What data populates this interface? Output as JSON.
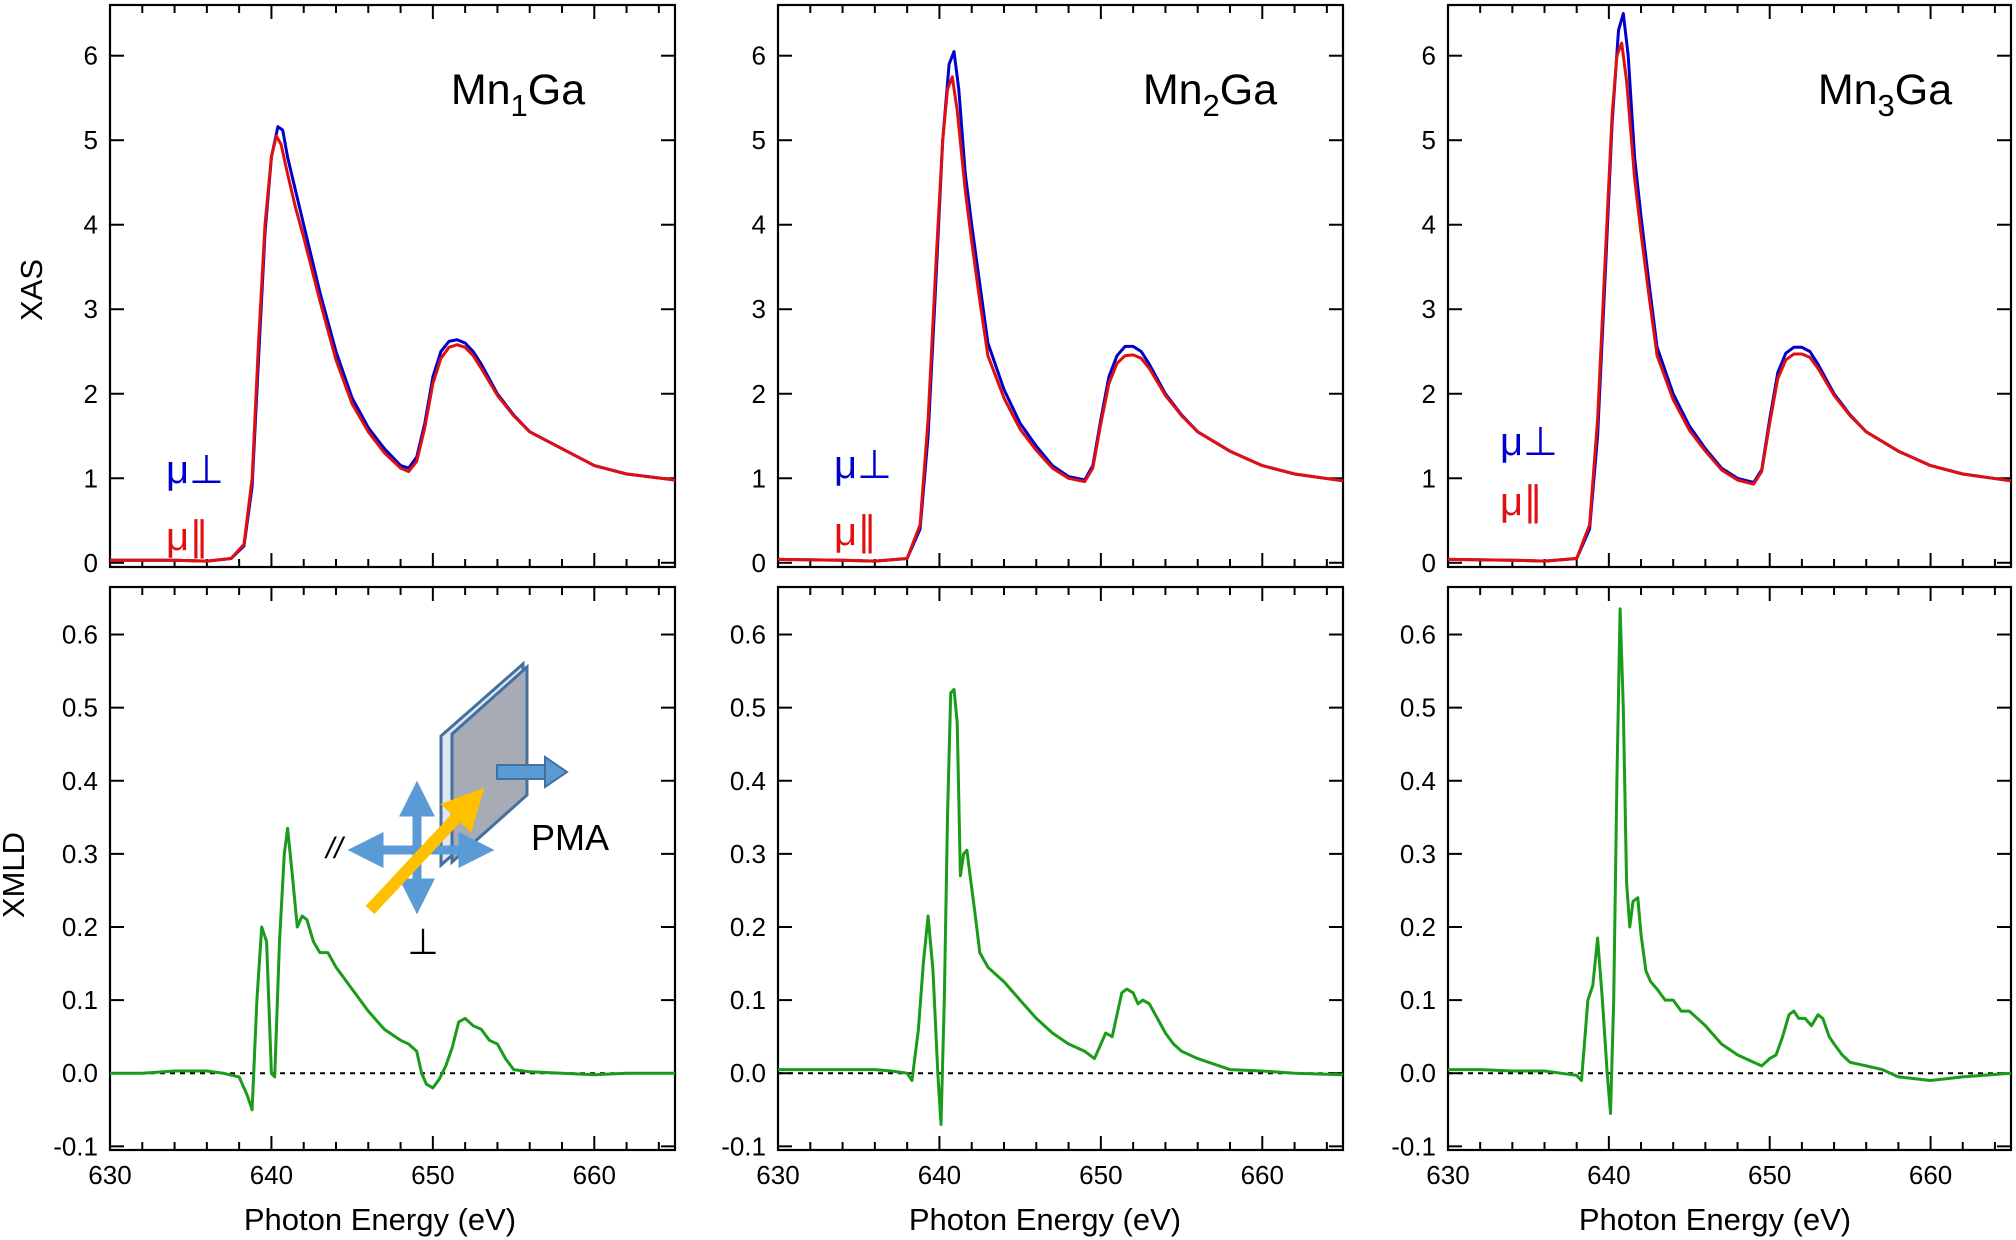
{
  "figure": {
    "x_axis_label": "Photon Energy (eV)",
    "y_label_top": "XAS",
    "y_label_bottom": "XMLD",
    "colors": {
      "mu_perp": "#0000cc",
      "mu_par": "#e01010",
      "xmld": "#1a9c1a",
      "zero_line": "#000000",
      "arrow_blue": "#5b9bd5",
      "beam_arrow": "#ffc000",
      "sample_plate": "#a6abb5",
      "sample_edge": "#41719c"
    }
  },
  "legend": {
    "perp": "μ⊥",
    "par": "μ∥"
  },
  "inset": {
    "label_pma": "PMA",
    "label_parallel": "//",
    "label_perp": "⊥",
    "icons": [
      "sample-plate-icon",
      "beam-arrow-icon",
      "polarization-arrows-icon",
      "magnetization-arrow-icon"
    ]
  },
  "chart_data": [
    {
      "type": "line",
      "panel": "XAS",
      "title": "Mn1Ga",
      "title_base": "Mn",
      "title_sub": "1",
      "title_rest": "Ga",
      "xlabel": "",
      "ylabel": "XAS",
      "xlim": [
        630,
        665
      ],
      "ylim": [
        -0.05,
        6.6
      ],
      "xticks": [
        630,
        640,
        650,
        660
      ],
      "yticks": [
        0,
        1,
        2,
        3,
        4,
        5,
        6
      ],
      "series": [
        {
          "name": "μ⊥",
          "color": "#0000cc",
          "x": [
            630,
            634,
            636,
            637.5,
            638.3,
            638.8,
            639.2,
            639.6,
            640,
            640.4,
            640.7,
            641,
            641.5,
            642,
            643,
            644,
            645,
            646,
            647,
            648,
            648.5,
            649,
            649.5,
            650,
            650.5,
            651,
            651.5,
            652,
            652.5,
            653,
            654,
            655,
            656,
            658,
            660,
            662,
            665
          ],
          "y": [
            0.03,
            0.03,
            0.02,
            0.05,
            0.2,
            0.9,
            2.4,
            3.9,
            4.8,
            5.16,
            5.12,
            4.8,
            4.4,
            4.0,
            3.2,
            2.5,
            1.95,
            1.6,
            1.35,
            1.15,
            1.12,
            1.25,
            1.65,
            2.2,
            2.5,
            2.62,
            2.64,
            2.6,
            2.5,
            2.35,
            2.0,
            1.75,
            1.55,
            1.35,
            1.15,
            1.05,
            0.98
          ]
        },
        {
          "name": "μ∥",
          "color": "#e01010",
          "x": [
            630,
            634,
            636,
            637.5,
            638.3,
            638.8,
            639.2,
            639.6,
            640,
            640.3,
            640.6,
            641,
            641.5,
            642,
            643,
            644,
            645,
            646,
            647,
            648,
            648.5,
            649,
            649.5,
            650,
            650.5,
            651,
            651.5,
            652,
            652.5,
            653,
            654,
            655,
            656,
            658,
            660,
            662,
            665
          ],
          "y": [
            0.03,
            0.03,
            0.02,
            0.05,
            0.22,
            1.0,
            2.6,
            4.0,
            4.8,
            5.05,
            4.95,
            4.6,
            4.2,
            3.85,
            3.1,
            2.4,
            1.88,
            1.55,
            1.3,
            1.12,
            1.08,
            1.2,
            1.6,
            2.12,
            2.42,
            2.55,
            2.58,
            2.55,
            2.45,
            2.3,
            1.98,
            1.74,
            1.55,
            1.35,
            1.15,
            1.05,
            0.98
          ]
        }
      ]
    },
    {
      "type": "line",
      "panel": "XAS",
      "title": "Mn2Ga",
      "title_base": "Mn",
      "title_sub": "2",
      "title_rest": "Ga",
      "xlabel": "",
      "ylabel": "",
      "xlim": [
        630,
        665
      ],
      "ylim": [
        -0.05,
        6.6
      ],
      "xticks": [
        630,
        640,
        650,
        660
      ],
      "yticks": [
        0,
        1,
        2,
        3,
        4,
        5,
        6
      ],
      "series": [
        {
          "name": "μ⊥",
          "color": "#0000cc",
          "x": [
            630,
            634,
            636,
            638,
            638.8,
            639.3,
            639.8,
            640.2,
            640.6,
            640.9,
            641.2,
            641.6,
            642,
            642.5,
            643,
            644,
            645,
            646,
            647,
            648,
            649,
            649.5,
            650,
            650.5,
            651,
            651.5,
            652,
            652.5,
            653,
            654,
            655,
            656,
            658,
            660,
            662,
            665
          ],
          "y": [
            0.04,
            0.03,
            0.02,
            0.05,
            0.4,
            1.5,
            3.4,
            5.0,
            5.9,
            6.05,
            5.6,
            4.6,
            4.0,
            3.3,
            2.6,
            2.05,
            1.65,
            1.38,
            1.15,
            1.02,
            0.98,
            1.15,
            1.7,
            2.2,
            2.45,
            2.56,
            2.56,
            2.5,
            2.35,
            2.0,
            1.75,
            1.55,
            1.32,
            1.15,
            1.05,
            0.97
          ]
        },
        {
          "name": "μ∥",
          "color": "#e01010",
          "x": [
            630,
            634,
            636,
            638,
            638.8,
            639.3,
            639.8,
            640.2,
            640.5,
            640.8,
            641.1,
            641.6,
            642,
            642.5,
            643,
            644,
            645,
            646,
            647,
            648,
            649,
            649.5,
            650,
            650.5,
            651,
            651.5,
            652,
            652.5,
            653,
            654,
            655,
            656,
            658,
            660,
            662,
            665
          ],
          "y": [
            0.04,
            0.03,
            0.02,
            0.05,
            0.45,
            1.7,
            3.6,
            5.0,
            5.6,
            5.75,
            5.35,
            4.4,
            3.8,
            3.1,
            2.45,
            1.95,
            1.58,
            1.33,
            1.12,
            1.0,
            0.96,
            1.12,
            1.65,
            2.12,
            2.36,
            2.45,
            2.46,
            2.42,
            2.3,
            1.98,
            1.74,
            1.55,
            1.32,
            1.15,
            1.05,
            0.97
          ]
        }
      ]
    },
    {
      "type": "line",
      "panel": "XAS",
      "title": "Mn3Ga",
      "title_base": "Mn",
      "title_sub": "3",
      "title_rest": "Ga",
      "xlabel": "",
      "ylabel": "",
      "xlim": [
        630,
        665
      ],
      "ylim": [
        -0.05,
        6.6
      ],
      "xticks": [
        630,
        640,
        650,
        660
      ],
      "yticks": [
        0,
        1,
        2,
        3,
        4,
        5,
        6
      ],
      "series": [
        {
          "name": "μ⊥",
          "color": "#0000cc",
          "x": [
            630,
            634,
            636,
            638,
            638.8,
            639.3,
            639.8,
            640.2,
            640.6,
            640.9,
            641.2,
            641.6,
            642,
            642.5,
            643,
            644,
            645,
            646,
            647,
            648,
            649,
            649.5,
            650,
            650.5,
            651,
            651.5,
            652,
            652.5,
            653,
            654,
            655,
            656,
            658,
            660,
            662,
            665
          ],
          "y": [
            0.04,
            0.03,
            0.02,
            0.05,
            0.4,
            1.5,
            3.5,
            5.2,
            6.3,
            6.5,
            6.0,
            4.8,
            4.1,
            3.3,
            2.55,
            2.0,
            1.62,
            1.35,
            1.12,
            1.0,
            0.95,
            1.1,
            1.7,
            2.25,
            2.48,
            2.55,
            2.55,
            2.5,
            2.35,
            2.0,
            1.75,
            1.55,
            1.32,
            1.15,
            1.05,
            0.97
          ]
        },
        {
          "name": "μ∥",
          "color": "#e01010",
          "x": [
            630,
            634,
            636,
            638,
            638.8,
            639.3,
            639.8,
            640.2,
            640.5,
            640.8,
            641.1,
            641.6,
            642,
            642.5,
            643,
            644,
            645,
            646,
            647,
            648,
            649,
            649.5,
            650,
            650.5,
            651,
            651.5,
            652,
            652.5,
            653,
            654,
            655,
            656,
            658,
            660,
            662,
            665
          ],
          "y": [
            0.04,
            0.03,
            0.02,
            0.05,
            0.45,
            1.7,
            3.7,
            5.3,
            6.0,
            6.15,
            5.7,
            4.55,
            3.9,
            3.15,
            2.45,
            1.93,
            1.57,
            1.32,
            1.1,
            0.98,
            0.93,
            1.08,
            1.65,
            2.18,
            2.4,
            2.47,
            2.47,
            2.43,
            2.3,
            1.98,
            1.74,
            1.55,
            1.32,
            1.15,
            1.05,
            0.97
          ]
        }
      ]
    },
    {
      "type": "line",
      "panel": "XMLD",
      "title": "",
      "xlabel": "Photon Energy (eV)",
      "ylabel": "XMLD",
      "xlim": [
        630,
        665
      ],
      "ylim": [
        -0.105,
        0.665
      ],
      "xticks": [
        630,
        640,
        650,
        660
      ],
      "yticks": [
        -0.1,
        0.0,
        0.1,
        0.2,
        0.3,
        0.4,
        0.5,
        0.6
      ],
      "series": [
        {
          "name": "",
          "color": "#1a9c1a",
          "x": [
            630,
            632,
            634,
            636,
            637,
            638,
            638.5,
            638.8,
            639.1,
            639.4,
            639.7,
            640,
            640.2,
            640.5,
            640.8,
            641,
            641.3,
            641.6,
            641.9,
            642.2,
            642.6,
            643,
            643.5,
            644,
            645,
            646,
            647,
            648,
            648.5,
            649,
            649.3,
            649.6,
            650,
            650.4,
            650.8,
            651.2,
            651.6,
            652,
            652.5,
            653,
            653.5,
            654,
            654.5,
            655,
            656,
            658,
            660,
            662,
            665
          ],
          "y": [
            0.0,
            0.0,
            0.003,
            0.003,
            0.0,
            -0.005,
            -0.03,
            -0.05,
            0.1,
            0.2,
            0.18,
            0.0,
            -0.005,
            0.18,
            0.3,
            0.335,
            0.27,
            0.2,
            0.215,
            0.21,
            0.18,
            0.165,
            0.165,
            0.145,
            0.115,
            0.085,
            0.06,
            0.045,
            0.04,
            0.03,
            0.0,
            -0.015,
            -0.02,
            -0.008,
            0.01,
            0.035,
            0.07,
            0.075,
            0.065,
            0.06,
            0.045,
            0.04,
            0.02,
            0.005,
            0.002,
            0.0,
            -0.002,
            0.0,
            0.0
          ]
        }
      ]
    },
    {
      "type": "line",
      "panel": "XMLD",
      "title": "",
      "xlabel": "Photon Energy (eV)",
      "ylabel": "",
      "xlim": [
        630,
        665
      ],
      "ylim": [
        -0.105,
        0.665
      ],
      "xticks": [
        630,
        640,
        650,
        660
      ],
      "yticks": [
        -0.1,
        0.0,
        0.1,
        0.2,
        0.3,
        0.4,
        0.5,
        0.6
      ],
      "series": [
        {
          "name": "",
          "color": "#1a9c1a",
          "x": [
            630,
            632,
            634,
            636,
            637,
            638,
            638.3,
            638.7,
            639,
            639.3,
            639.6,
            639.9,
            640.1,
            640.3,
            640.5,
            640.7,
            640.9,
            641.1,
            641.3,
            641.5,
            641.7,
            641.9,
            642.2,
            642.5,
            643,
            643.5,
            644,
            645,
            646,
            647,
            648,
            649,
            649.3,
            649.6,
            650,
            650.3,
            650.7,
            651,
            651.3,
            651.6,
            652,
            652.3,
            652.6,
            653,
            653.5,
            654,
            654.5,
            655,
            656,
            658,
            660,
            662,
            665
          ],
          "y": [
            0.005,
            0.005,
            0.005,
            0.005,
            0.003,
            0.0,
            -0.01,
            0.06,
            0.15,
            0.215,
            0.14,
            0.0,
            -0.07,
            0.1,
            0.35,
            0.52,
            0.525,
            0.48,
            0.27,
            0.3,
            0.305,
            0.27,
            0.22,
            0.165,
            0.145,
            0.135,
            0.125,
            0.1,
            0.075,
            0.055,
            0.04,
            0.03,
            0.025,
            0.02,
            0.04,
            0.055,
            0.05,
            0.08,
            0.11,
            0.115,
            0.11,
            0.095,
            0.1,
            0.095,
            0.075,
            0.055,
            0.04,
            0.03,
            0.02,
            0.005,
            0.003,
            0.0,
            -0.002
          ]
        }
      ]
    },
    {
      "type": "line",
      "panel": "XMLD",
      "title": "",
      "xlabel": "Photon Energy (eV)",
      "ylabel": "",
      "xlim": [
        630,
        665
      ],
      "ylim": [
        -0.105,
        0.665
      ],
      "xticks": [
        630,
        640,
        650,
        660
      ],
      "yticks": [
        -0.1,
        0.0,
        0.1,
        0.2,
        0.3,
        0.4,
        0.5,
        0.6
      ],
      "series": [
        {
          "name": "",
          "color": "#1a9c1a",
          "x": [
            630,
            632,
            634,
            636,
            637,
            638,
            638.3,
            638.7,
            639,
            639.3,
            639.6,
            639.9,
            640.1,
            640.3,
            640.5,
            640.7,
            640.9,
            641.1,
            641.3,
            641.5,
            641.8,
            642,
            642.3,
            642.6,
            643,
            643.5,
            644,
            644.5,
            645,
            646,
            647,
            648,
            649,
            649.5,
            650,
            650.4,
            650.8,
            651.2,
            651.5,
            651.8,
            652.2,
            652.6,
            653,
            653.3,
            653.7,
            654,
            654.5,
            655,
            656,
            657,
            658,
            660,
            662,
            665
          ],
          "y": [
            0.005,
            0.005,
            0.003,
            0.003,
            0.0,
            -0.003,
            -0.01,
            0.1,
            0.12,
            0.185,
            0.1,
            0.0,
            -0.055,
            0.1,
            0.4,
            0.635,
            0.5,
            0.26,
            0.2,
            0.235,
            0.24,
            0.19,
            0.14,
            0.125,
            0.115,
            0.1,
            0.1,
            0.085,
            0.085,
            0.065,
            0.04,
            0.025,
            0.015,
            0.01,
            0.02,
            0.025,
            0.05,
            0.08,
            0.085,
            0.075,
            0.075,
            0.065,
            0.08,
            0.075,
            0.05,
            0.04,
            0.025,
            0.015,
            0.01,
            0.005,
            -0.005,
            -0.01,
            -0.005,
            0.0
          ]
        }
      ]
    }
  ]
}
